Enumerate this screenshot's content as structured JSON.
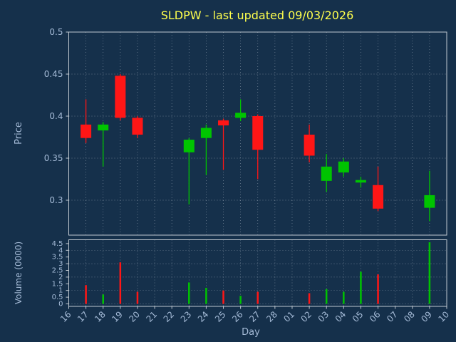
{
  "title": "SLDPW - last updated 09/03/2026",
  "chart_data": {
    "type": "candlestick",
    "title": "SLDPW - last updated 09/03/2026",
    "xlabel": "Day",
    "price_axis": {
      "label": "Price",
      "ticks": [
        "0.5",
        "0.45",
        "0.4",
        "0.35",
        "0.3"
      ],
      "ylim": [
        0.2585,
        0.5
      ]
    },
    "volume_axis": {
      "label": "Volume (0000)",
      "ticks": [
        "4.5",
        "4",
        "3.5",
        "3",
        "2.5",
        "2",
        "1.5",
        "1",
        "0.5",
        "0"
      ],
      "ylim": [
        0,
        4.8
      ]
    },
    "categories": [
      "16",
      "17",
      "18",
      "19",
      "20",
      "21",
      "22",
      "23",
      "24",
      "25",
      "26",
      "27",
      "28",
      "01",
      "02",
      "03",
      "04",
      "05",
      "06",
      "07",
      "08",
      "09",
      "10"
    ],
    "candles": [
      {
        "day": "17",
        "open": 0.39,
        "high": 0.42,
        "low": 0.368,
        "close": 0.374,
        "volume": 1.4
      },
      {
        "day": "18",
        "open": 0.383,
        "high": 0.393,
        "low": 0.34,
        "close": 0.39,
        "volume": 0.7
      },
      {
        "day": "19",
        "open": 0.448,
        "high": 0.45,
        "low": 0.395,
        "close": 0.398,
        "volume": 3.1
      },
      {
        "day": "20",
        "open": 0.398,
        "high": 0.4,
        "low": 0.374,
        "close": 0.378,
        "volume": 0.9
      },
      {
        "day": "23",
        "open": 0.357,
        "high": 0.374,
        "low": 0.295,
        "close": 0.372,
        "volume": 1.6
      },
      {
        "day": "24",
        "open": 0.374,
        "high": 0.39,
        "low": 0.33,
        "close": 0.386,
        "volume": 1.2
      },
      {
        "day": "25",
        "open": 0.395,
        "high": 0.397,
        "low": 0.336,
        "close": 0.389,
        "volume": 1.0
      },
      {
        "day": "26",
        "open": 0.398,
        "high": 0.42,
        "low": 0.394,
        "close": 0.404,
        "volume": 0.6
      },
      {
        "day": "27",
        "open": 0.4,
        "high": 0.402,
        "low": 0.325,
        "close": 0.36,
        "volume": 0.9
      },
      {
        "day": "02",
        "open": 0.378,
        "high": 0.39,
        "low": 0.345,
        "close": 0.353,
        "volume": 0.8
      },
      {
        "day": "03",
        "open": 0.323,
        "high": 0.355,
        "low": 0.31,
        "close": 0.34,
        "volume": 1.1
      },
      {
        "day": "04",
        "open": 0.333,
        "high": 0.35,
        "low": 0.328,
        "close": 0.346,
        "volume": 0.9
      },
      {
        "day": "05",
        "open": 0.321,
        "high": 0.328,
        "low": 0.315,
        "close": 0.324,
        "volume": 2.4
      },
      {
        "day": "06",
        "open": 0.318,
        "high": 0.34,
        "low": 0.287,
        "close": 0.29,
        "volume": 2.2
      },
      {
        "day": "09",
        "open": 0.291,
        "high": 0.335,
        "low": 0.275,
        "close": 0.306,
        "volume": 4.6
      }
    ],
    "colors": {
      "up": "#00c400",
      "down": "#ff1616",
      "background": "#15304b",
      "title": "#ffff4d",
      "axis_text": "#a4bad6",
      "grid": "#cdd6e0",
      "spine": "#c0c8d0"
    },
    "legend": "none",
    "grid": "on"
  }
}
